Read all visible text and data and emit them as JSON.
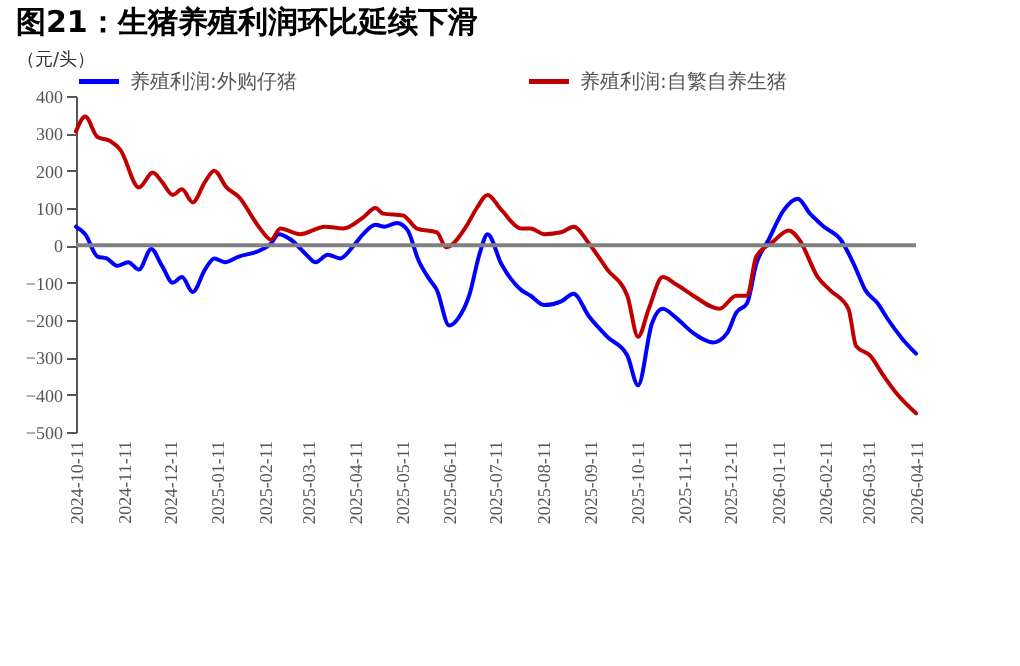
{
  "chart_data": {
    "type": "line",
    "title": "图21：生猪养殖利润环比延续下滑",
    "ylabel": "（元/头）",
    "xlim": [
      "2024-10-11",
      "2026-04-11"
    ],
    "xticks": [
      "2024-10-11",
      "2024-11-11",
      "2024-12-11",
      "2025-01-11",
      "2025-02-11",
      "2025-03-11",
      "2025-04-11",
      "2025-05-11",
      "2025-06-11",
      "2025-07-11",
      "2025-08-11",
      "2025-09-11",
      "2025-10-11",
      "2025-11-11",
      "2025-12-11",
      "2026-01-11",
      "2026-02-11",
      "2026-03-11",
      "2026-04-11"
    ],
    "ylim": [
      -500,
      400
    ],
    "yticks": [
      -500,
      -400,
      -300,
      -200,
      -100,
      0,
      100,
      200,
      300,
      400
    ],
    "grid": false,
    "legend": "top",
    "marker": "none",
    "line_style": "solid",
    "ref_lines": [
      {
        "axis": "y",
        "value": 0,
        "color": "#808080"
      }
    ],
    "series": [
      {
        "name": "养殖利润:外购仔猪",
        "color": "#0000ff",
        "x": [
          "2024-10-11",
          "2024-10-17",
          "2024-10-25",
          "2024-10-31",
          "2024-11-07",
          "2024-11-14",
          "2024-11-21",
          "2024-11-29",
          "2024-12-06",
          "2024-12-13",
          "2024-12-19",
          "2024-12-26",
          "2025-01-03",
          "2025-01-09",
          "2025-01-16",
          "2025-01-25",
          "2025-02-07",
          "2025-02-15",
          "2025-02-20",
          "2025-02-28",
          "2025-03-10",
          "2025-03-16",
          "2025-03-24",
          "2025-04-01",
          "2025-04-09",
          "2025-04-16",
          "2025-04-24",
          "2025-04-30",
          "2025-05-08",
          "2025-05-15",
          "2025-05-22",
          "2025-05-29",
          "2025-06-03",
          "2025-06-11",
          "2025-06-17",
          "2025-06-24",
          "2025-07-01",
          "2025-07-06",
          "2025-07-15",
          "2025-07-28",
          "2025-08-03",
          "2025-08-12",
          "2025-08-23",
          "2025-08-31",
          "2025-09-10",
          "2025-09-22",
          "2025-10-05",
          "2025-10-12",
          "2025-10-21",
          "2025-10-28",
          "2025-11-06",
          "2025-11-17",
          "2025-11-30",
          "2025-12-09",
          "2025-12-15",
          "2025-12-22",
          "2025-12-28",
          "2026-01-05",
          "2026-01-15",
          "2026-01-24",
          "2026-02-01",
          "2026-02-10",
          "2026-02-21",
          "2026-03-02",
          "2026-03-09",
          "2026-03-17",
          "2026-03-24",
          "2026-04-02",
          "2026-04-11"
        ],
        "values": [
          50,
          30,
          -30,
          -35,
          -55,
          -45,
          -65,
          -10,
          -55,
          -100,
          -85,
          -125,
          -65,
          -35,
          -45,
          -30,
          -15,
          5,
          30,
          15,
          -25,
          -45,
          -25,
          -35,
          -5,
          30,
          55,
          50,
          60,
          40,
          -40,
          -90,
          -120,
          -215,
          -195,
          -135,
          -20,
          30,
          -50,
          -120,
          -135,
          -160,
          -150,
          -130,
          -190,
          -245,
          -295,
          -375,
          -210,
          -170,
          -195,
          -235,
          -260,
          -235,
          -180,
          -155,
          -50,
          15,
          95,
          125,
          85,
          50,
          15,
          -55,
          -120,
          -155,
          -200,
          -250,
          -290
        ]
      },
      {
        "name": "养殖利润:自繁自养生猪",
        "color": "#c00000",
        "x": [
          "2024-10-11",
          "2024-10-17",
          "2024-10-25",
          "2024-11-02",
          "2024-11-09",
          "2024-11-21",
          "2024-11-30",
          "2024-12-06",
          "2024-12-13",
          "2024-12-19",
          "2024-12-26",
          "2025-01-03",
          "2025-01-09",
          "2025-01-17",
          "2025-01-25",
          "2025-02-07",
          "2025-02-15",
          "2025-02-21",
          "2025-03-06",
          "2025-03-22",
          "2025-04-03",
          "2025-04-16",
          "2025-04-24",
          "2025-04-29",
          "2025-05-12",
          "2025-05-21",
          "2025-06-03",
          "2025-06-09",
          "2025-06-22",
          "2025-06-29",
          "2025-07-06",
          "2025-07-15",
          "2025-07-28",
          "2025-08-03",
          "2025-08-12",
          "2025-08-23",
          "2025-08-31",
          "2025-09-10",
          "2025-09-22",
          "2025-10-05",
          "2025-10-12",
          "2025-10-19",
          "2025-10-28",
          "2025-11-06",
          "2025-11-17",
          "2025-12-04",
          "2025-12-15",
          "2025-12-22",
          "2025-12-28",
          "2026-01-08",
          "2026-01-18",
          "2026-01-25",
          "2026-02-06",
          "2026-02-14",
          "2026-02-26",
          "2026-03-03",
          "2026-03-12",
          "2026-03-21",
          "2026-03-29",
          "2026-04-11"
        ],
        "values": [
          305,
          345,
          290,
          280,
          255,
          155,
          195,
          170,
          135,
          150,
          115,
          170,
          200,
          155,
          130,
          50,
          15,
          45,
          30,
          50,
          45,
          75,
          100,
          85,
          80,
          45,
          35,
          -5,
          50,
          100,
          135,
          95,
          45,
          45,
          30,
          35,
          50,
          5,
          -65,
          -135,
          -245,
          -170,
          -85,
          -105,
          -135,
          -170,
          -135,
          -135,
          -30,
          10,
          40,
          15,
          -85,
          -120,
          -170,
          -270,
          -295,
          -350,
          -395,
          -450
        ]
      }
    ]
  }
}
